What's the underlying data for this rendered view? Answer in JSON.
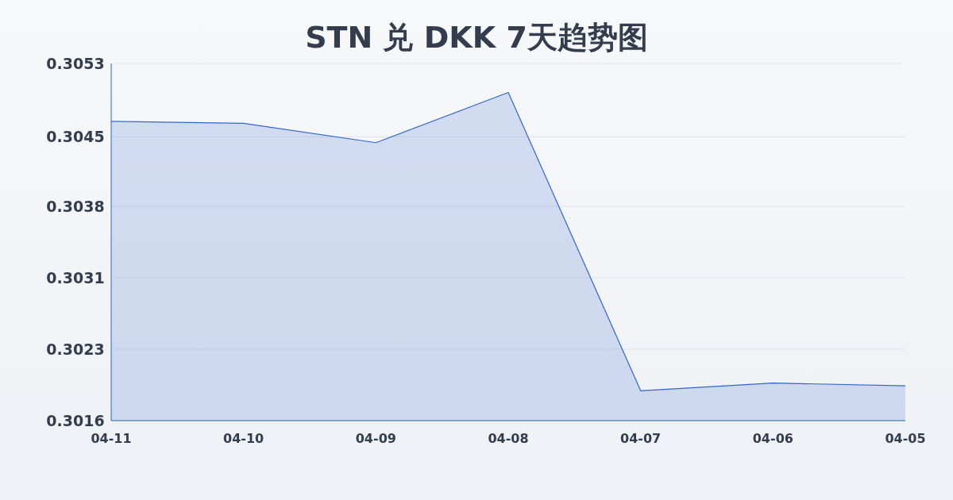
{
  "chart_data": {
    "type": "area",
    "title": "STN 兑 DKK 7天趋势图",
    "categories": [
      "04-11",
      "04-10",
      "04-09",
      "04-08",
      "04-07",
      "04-06",
      "04-05"
    ],
    "series": [
      {
        "color": "#3366cc",
        "values": [
          0.3047,
          0.30468,
          0.30448,
          0.305,
          0.30191,
          0.30199,
          0.30196
        ]
      }
    ],
    "ylim": [
      0.3016,
      0.3053
    ],
    "yticks": [
      {
        "value": 0.3016,
        "label": "0.3016"
      },
      {
        "value": 0.30234,
        "label": "0.3023"
      },
      {
        "value": 0.30308,
        "label": "0.3031"
      },
      {
        "value": 0.30382,
        "label": "0.3038"
      },
      {
        "value": 0.30454,
        "label": "0.3045"
      },
      {
        "value": 0.3053,
        "label": "0.3053"
      }
    ],
    "grid": "y"
  }
}
